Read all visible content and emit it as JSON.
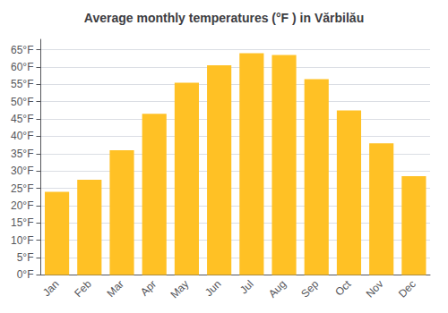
{
  "chart_data": {
    "type": "bar",
    "title": "Average monthly temperatures (°F ) in Vărbilău",
    "categories": [
      "Jan",
      "Feb",
      "Mar",
      "Apr",
      "May",
      "Jun",
      "Jul",
      "Aug",
      "Sep",
      "Oct",
      "Nov",
      "Dec"
    ],
    "values": [
      24.0,
      27.5,
      36.0,
      46.5,
      55.5,
      60.5,
      64.0,
      63.5,
      56.5,
      47.5,
      38.0,
      28.5
    ],
    "color": "#FFC125",
    "ylim": [
      0,
      68
    ],
    "yticks": [
      {
        "value": 0,
        "label": "0°F"
      },
      {
        "value": 5,
        "label": "5°F"
      },
      {
        "value": 10,
        "label": "10°F"
      },
      {
        "value": 15,
        "label": "15°F"
      },
      {
        "value": 20,
        "label": "20°F"
      },
      {
        "value": 25,
        "label": "25°F"
      },
      {
        "value": 30,
        "label": "30°F"
      },
      {
        "value": 35,
        "label": "35°F"
      },
      {
        "value": 40,
        "label": "40°F"
      },
      {
        "value": 45,
        "label": "45°F"
      },
      {
        "value": 50,
        "label": "50°F"
      },
      {
        "value": 55,
        "label": "55°F"
      },
      {
        "value": 60,
        "label": "60°F"
      },
      {
        "value": 65,
        "label": "65°F"
      }
    ],
    "grid": true
  }
}
